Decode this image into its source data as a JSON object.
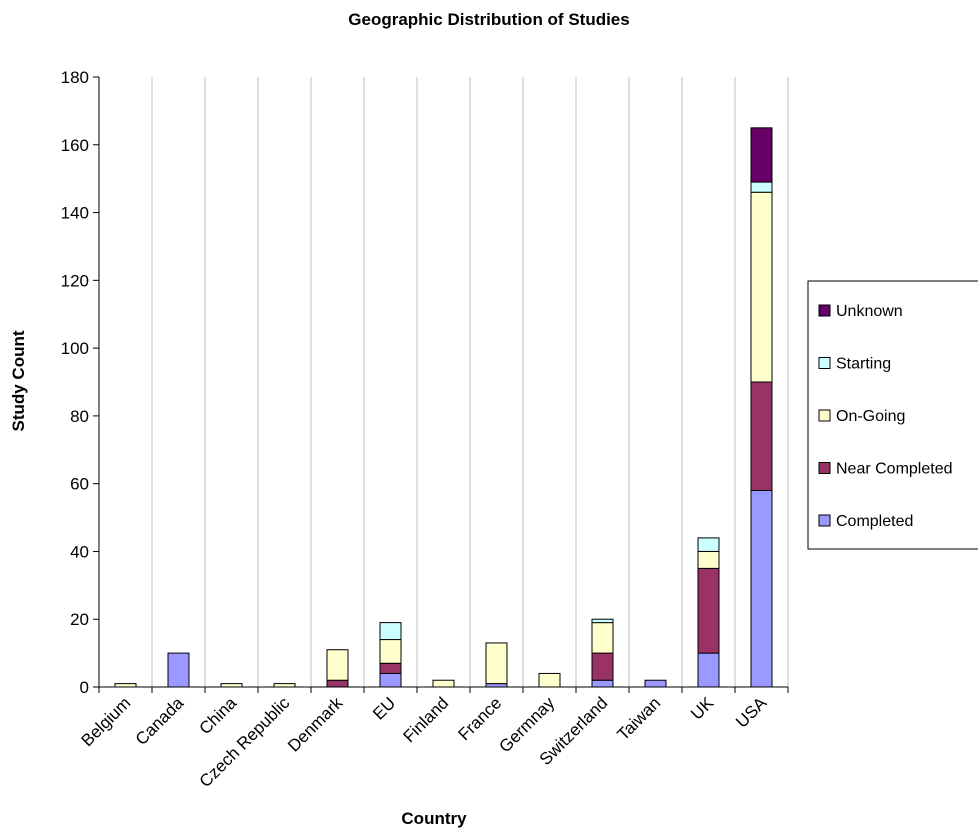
{
  "chart_data": {
    "type": "bar",
    "stacked": true,
    "title": "Geographic Distribution of Studies",
    "xlabel": "Country",
    "ylabel": "Study Count",
    "ylim": [
      0,
      180
    ],
    "yticks": [
      0,
      20,
      40,
      60,
      80,
      100,
      120,
      140,
      160,
      180
    ],
    "grid": "vertical",
    "legend_position": "right",
    "categories": [
      "Belgium",
      "Canada",
      "China",
      "Czech Republic",
      "Denmark",
      "EU",
      "Finland",
      "France",
      "Germnay",
      "Switzerland",
      "Taiwan",
      "UK",
      "USA"
    ],
    "series": [
      {
        "name": "Completed",
        "color": "#9999ff",
        "values": [
          0,
          10,
          0,
          0,
          0,
          4,
          0,
          1,
          0,
          2,
          2,
          10,
          58
        ]
      },
      {
        "name": "Near Completed",
        "color": "#993366",
        "values": [
          0,
          0,
          0,
          0,
          2,
          3,
          0,
          0,
          0,
          8,
          0,
          25,
          32
        ]
      },
      {
        "name": "On-Going",
        "color": "#ffffcc",
        "values": [
          1,
          0,
          1,
          1,
          9,
          7,
          2,
          12,
          4,
          9,
          0,
          5,
          56
        ]
      },
      {
        "name": "Starting",
        "color": "#ccffff",
        "values": [
          0,
          0,
          0,
          0,
          0,
          5,
          0,
          0,
          0,
          1,
          0,
          4,
          3
        ]
      },
      {
        "name": "Unknown",
        "color": "#660066",
        "values": [
          0,
          0,
          0,
          0,
          0,
          0,
          0,
          0,
          0,
          0,
          0,
          0,
          16
        ]
      }
    ]
  }
}
